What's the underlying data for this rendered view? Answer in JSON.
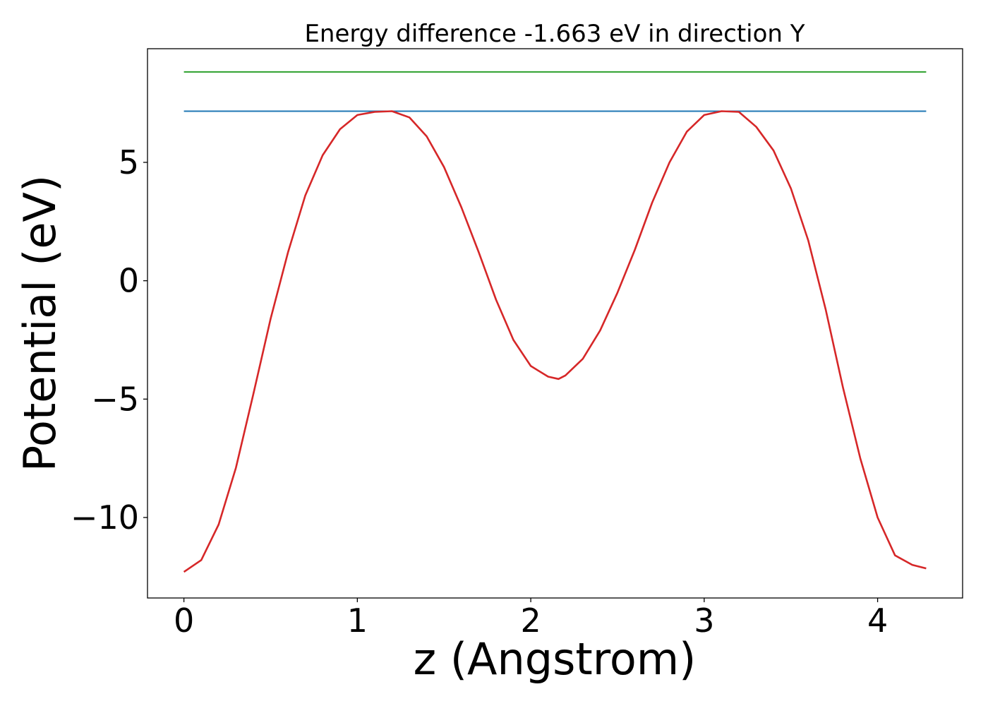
{
  "chart_data": {
    "type": "line",
    "title": "Energy difference -1.663 eV in direction Y",
    "xlabel": "z (Angstrom)",
    "ylabel": "Potential (eV)",
    "xlim": [
      -0.21,
      4.49
    ],
    "ylim": [
      -13.4,
      9.8
    ],
    "xticks": [
      0,
      1,
      2,
      3,
      4
    ],
    "xtick_labels": [
      "0",
      "1",
      "2",
      "3",
      "4"
    ],
    "yticks": [
      -10,
      -5,
      0,
      5
    ],
    "ytick_labels": [
      "−10",
      "−5",
      "0",
      "5"
    ],
    "grid": false,
    "legend": "none",
    "series": [
      {
        "color": "#2ca02c",
        "x": [
          0,
          4.28
        ],
        "y": [
          8.82,
          8.82
        ]
      },
      {
        "color": "#1f77b4",
        "x": [
          0,
          4.28
        ],
        "y": [
          7.16,
          7.16
        ]
      },
      {
        "color": "#d62728",
        "x": [
          0,
          0.1,
          0.2,
          0.3,
          0.4,
          0.5,
          0.6,
          0.7,
          0.8,
          0.9,
          1.0,
          1.1,
          1.2,
          1.3,
          1.4,
          1.5,
          1.6,
          1.7,
          1.8,
          1.9,
          2.0,
          2.1,
          2.16,
          2.2,
          2.3,
          2.4,
          2.5,
          2.6,
          2.7,
          2.8,
          2.9,
          3.0,
          3.1,
          3.2,
          3.3,
          3.4,
          3.5,
          3.6,
          3.7,
          3.8,
          3.9,
          4.0,
          4.1,
          4.2,
          4.28
        ],
        "y": [
          -12.3,
          -11.8,
          -10.3,
          -7.9,
          -4.8,
          -1.6,
          1.2,
          3.6,
          5.3,
          6.4,
          7.0,
          7.13,
          7.16,
          6.9,
          6.1,
          4.8,
          3.1,
          1.2,
          -0.8,
          -2.5,
          -3.6,
          -4.05,
          -4.15,
          -4.0,
          -3.3,
          -2.1,
          -0.5,
          1.3,
          3.3,
          5.0,
          6.3,
          7.0,
          7.16,
          7.13,
          6.5,
          5.5,
          3.9,
          1.7,
          -1.2,
          -4.5,
          -7.5,
          -10.0,
          -11.6,
          -12.0,
          -12.15
        ]
      }
    ]
  }
}
